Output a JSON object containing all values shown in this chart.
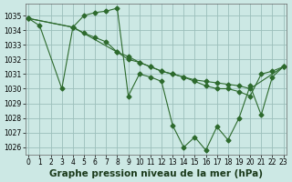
{
  "series": [
    {
      "x": [
        0,
        1,
        3,
        4,
        5,
        6,
        7,
        8,
        9,
        10,
        11,
        12,
        13,
        14,
        15,
        16,
        17,
        18,
        19,
        20,
        21,
        22,
        23
      ],
      "y": [
        1034.8,
        1034.3,
        1030.0,
        1034.2,
        1035.0,
        1035.2,
        1035.3,
        1035.5,
        1029.5,
        1031.0,
        1030.8,
        1030.5,
        1027.5,
        1026.0,
        1026.7,
        1025.8,
        1027.4,
        1026.5,
        1028.0,
        1030.2,
        1028.2,
        1030.8,
        1031.5
      ]
    },
    {
      "x": [
        0,
        4,
        8,
        9,
        10,
        11,
        12,
        13,
        14,
        15,
        16,
        17,
        18,
        19,
        20,
        21,
        22,
        23
      ],
      "y": [
        1034.8,
        1034.2,
        1032.5,
        1032.2,
        1031.8,
        1031.5,
        1031.2,
        1031.0,
        1030.8,
        1030.5,
        1030.2,
        1030.0,
        1030.0,
        1029.8,
        1029.5,
        1031.0,
        1031.2,
        1031.5
      ]
    },
    {
      "x": [
        0,
        4,
        5,
        6,
        7,
        8,
        9,
        10,
        11,
        12,
        13,
        14,
        15,
        16,
        17,
        18,
        19,
        20,
        23
      ],
      "y": [
        1034.8,
        1034.2,
        1033.8,
        1033.5,
        1033.2,
        1032.5,
        1032.0,
        1031.8,
        1031.5,
        1031.2,
        1031.0,
        1030.8,
        1030.6,
        1030.5,
        1030.4,
        1030.3,
        1030.2,
        1030.0,
        1031.5
      ]
    }
  ],
  "line_color": "#2d6a2d",
  "marker": "D",
  "marker_size": 2.5,
  "bg_color": "#cce8e4",
  "grid_color": "#9bbfbb",
  "ylim": [
    1025.5,
    1035.8
  ],
  "yticks": [
    1026,
    1027,
    1028,
    1029,
    1030,
    1031,
    1032,
    1033,
    1034,
    1035
  ],
  "xlim": [
    -0.3,
    23.3
  ],
  "xticks": [
    0,
    1,
    2,
    3,
    4,
    5,
    6,
    7,
    8,
    9,
    10,
    11,
    12,
    13,
    14,
    15,
    16,
    17,
    18,
    19,
    20,
    21,
    22,
    23
  ],
  "xlabel": "Graphe pression niveau de la mer (hPa)",
  "xlabel_fontsize": 7.5,
  "tick_fontsize": 5.5
}
